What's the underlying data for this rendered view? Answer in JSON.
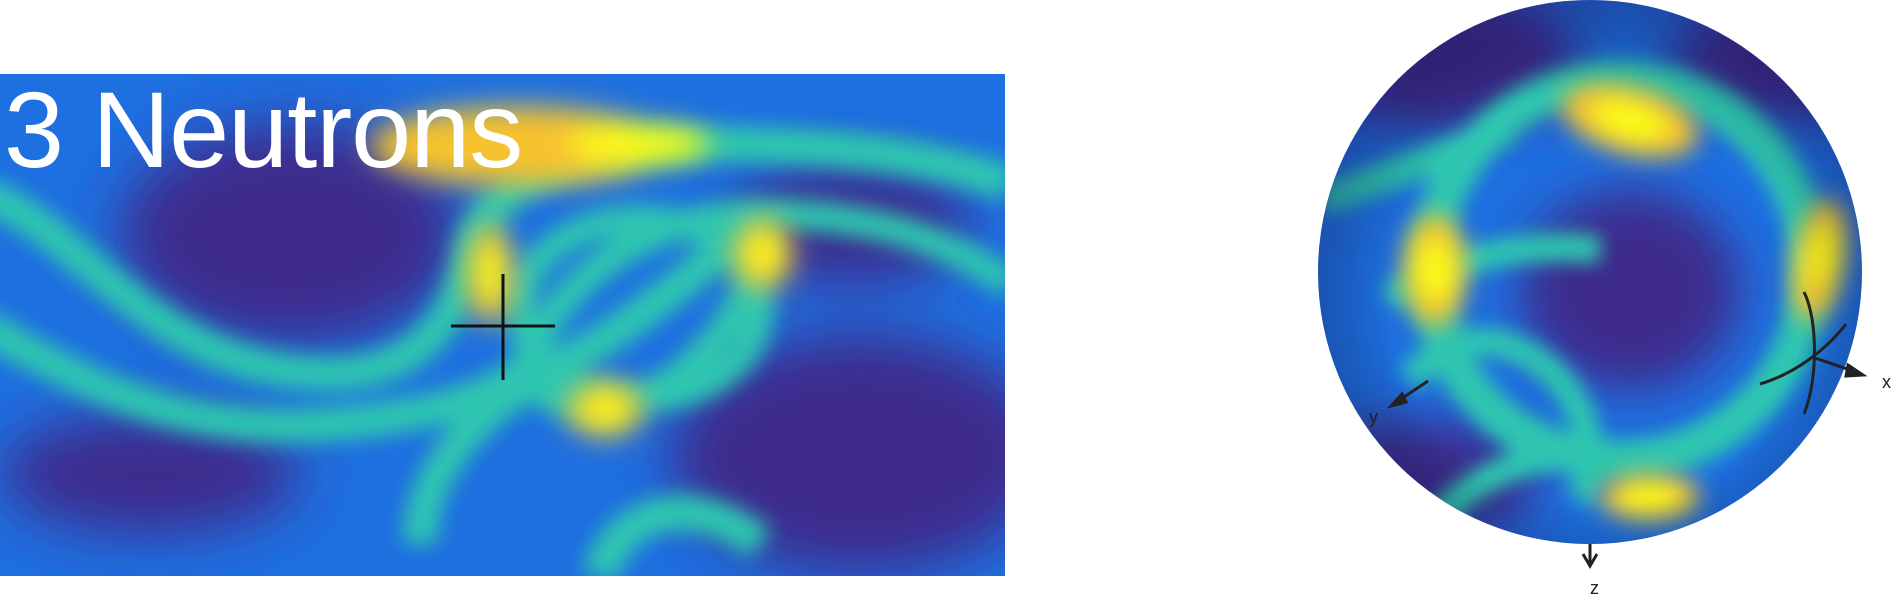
{
  "title": "3 Neutrons",
  "axes": {
    "x": "x",
    "y": "y",
    "z": "z"
  },
  "colormap": {
    "low": "#3e2a8c",
    "mid_low": "#1e6fe0",
    "mid": "#2ec6b0",
    "high": "#f6c22f",
    "peak": "#fafc19"
  },
  "markers": {
    "map_crosshair": "crosshair-icon",
    "sphere_crosshair": "crosshair-icon"
  }
}
